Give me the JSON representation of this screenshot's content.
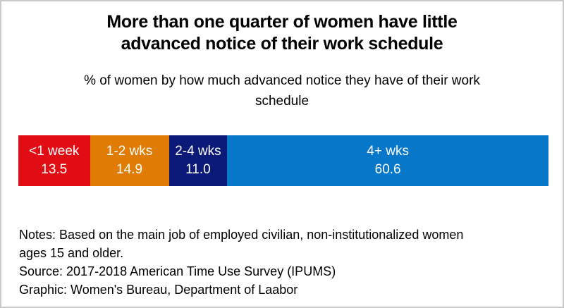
{
  "frame": {
    "background_color": "#ffffff",
    "border_color": "#c9c9c9"
  },
  "title": {
    "text": "More than one quarter of women have little advanced notice of their work schedule",
    "lines": [
      "More than one quarter of women have little",
      "advanced notice of their work schedule"
    ]
  },
  "subtitle": {
    "text": "% of women by how much advanced notice they have of their work schedule",
    "lines": [
      "% of women by how much advanced notice they have of their work",
      "schedule"
    ]
  },
  "chart_data": {
    "type": "bar",
    "variant": "horizontal-stacked-100-percent",
    "title": "More than one quarter of women have little advanced notice of their work schedule",
    "subtitle": "% of women by how much advanced notice they have of their work schedule",
    "categories": [
      "<1 week",
      "1-2 wks",
      "2-4 wks",
      "4+ wks"
    ],
    "values": [
      13.5,
      14.9,
      11.0,
      60.6
    ],
    "unit": "%",
    "xlim": [
      0,
      100
    ],
    "grid": false,
    "legend_position": "none",
    "label_text_color": "#ffffff",
    "segments": [
      {
        "key": "lt-1-week",
        "label": "<1 week",
        "value": 13.5,
        "display": "13.5",
        "color": "#e00d14"
      },
      {
        "key": "1-2-wks",
        "label": "1-2 wks",
        "value": 14.9,
        "display": "14.9",
        "color": "#e07c04"
      },
      {
        "key": "2-4-wks",
        "label": "2-4 wks",
        "value": 11.0,
        "display": "11.0",
        "color": "#0b1a78"
      },
      {
        "key": "4-plus-wks",
        "label": "4+ wks",
        "value": 60.6,
        "display": "60.6",
        "color": "#0778c9"
      }
    ]
  },
  "notes": {
    "lines": [
      "Notes: Based on the main job of employed civilian, non-institutionalized women",
      "ages 15 and older.",
      "Source: 2017-2018 American Time Use Survey (IPUMS)",
      "Graphic: Women's Bureau, Department of Laabor"
    ]
  }
}
